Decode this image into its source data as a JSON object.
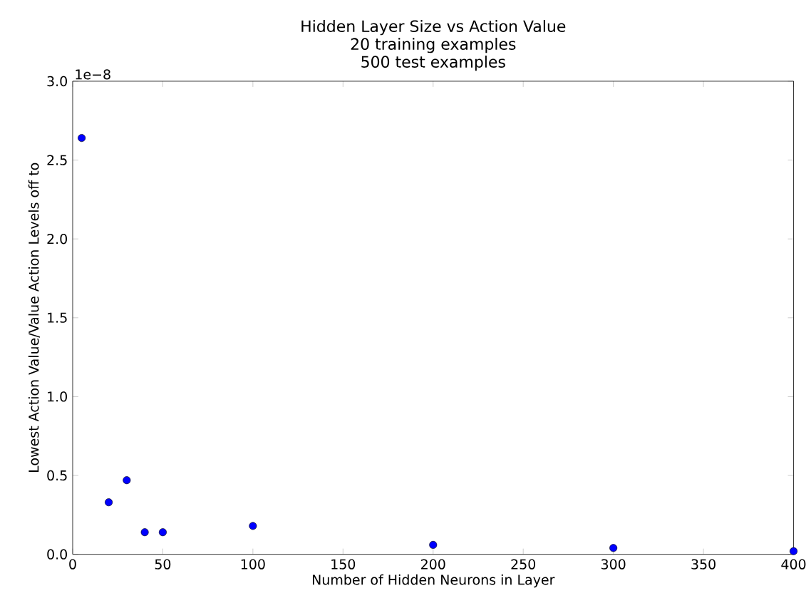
{
  "chart_data": {
    "type": "scatter",
    "title": "Hidden Layer Size vs Action Value",
    "subtitle": "20 training examples",
    "annotations": [
      "500 test examples",
      "1e−8"
    ],
    "xlabel": "Number of Hidden Neurons in Layer",
    "ylabel": "Lowest Action Value/Value Action Levels off to",
    "x": [
      5,
      20,
      30,
      40,
      50,
      100,
      200,
      300,
      400
    ],
    "values": [
      2.64,
      0.33,
      0.47,
      0.14,
      0.14,
      0.18,
      0.06,
      0.04,
      0.02
    ],
    "color": "#0000ff",
    "marker": "circle",
    "xlim": [
      0,
      400
    ],
    "xticks": [
      0,
      50,
      100,
      150,
      200,
      250,
      300,
      350,
      400
    ],
    "ylim": [
      0,
      3
    ],
    "yticks": [
      {
        "value": 0,
        "label": "0.0"
      },
      {
        "value": 0.5,
        "label": "0.5"
      },
      {
        "value": 1,
        "label": "1.0"
      },
      {
        "value": 1.5,
        "label": "1.5"
      },
      {
        "value": 2,
        "label": "2.0"
      },
      {
        "value": 2.5,
        "label": "2.5"
      },
      {
        "value": 3,
        "label": "3.0"
      }
    ],
    "grid": false
  }
}
